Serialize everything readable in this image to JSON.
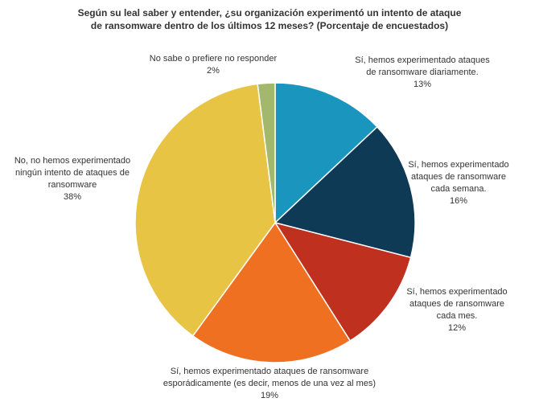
{
  "chart_data": {
    "type": "pie",
    "title": "Según su leal saber y entender, ¿su organización experimentó un intento de ataque de ransomware dentro de los últimos 12 meses? (Porcentaje de encuestados)",
    "categories": [
      "Sí, hemos experimentado ataques\nde ransomware diariamente.",
      "Sí, hemos experimentado\nataques de ransomware\ncada semana.",
      "Sí, hemos experimentado\nataques de ransomware\ncada mes.",
      "Sí, hemos experimentado ataques de ransomware\nesporádicamente (es decir, menos de una vez al mes)",
      "No, no hemos experimentado\nningún intento de ataques de\nransomware",
      "No sabe o prefiere no responder"
    ],
    "values": [
      13,
      16,
      12,
      19,
      38,
      2
    ],
    "value_labels": [
      "13%",
      "16%",
      "12%",
      "19%",
      "38%",
      "2%"
    ],
    "colors": [
      "#1a95bd",
      "#0e3a55",
      "#c0301f",
      "#f07022",
      "#e8c444",
      "#a3b86c"
    ]
  }
}
